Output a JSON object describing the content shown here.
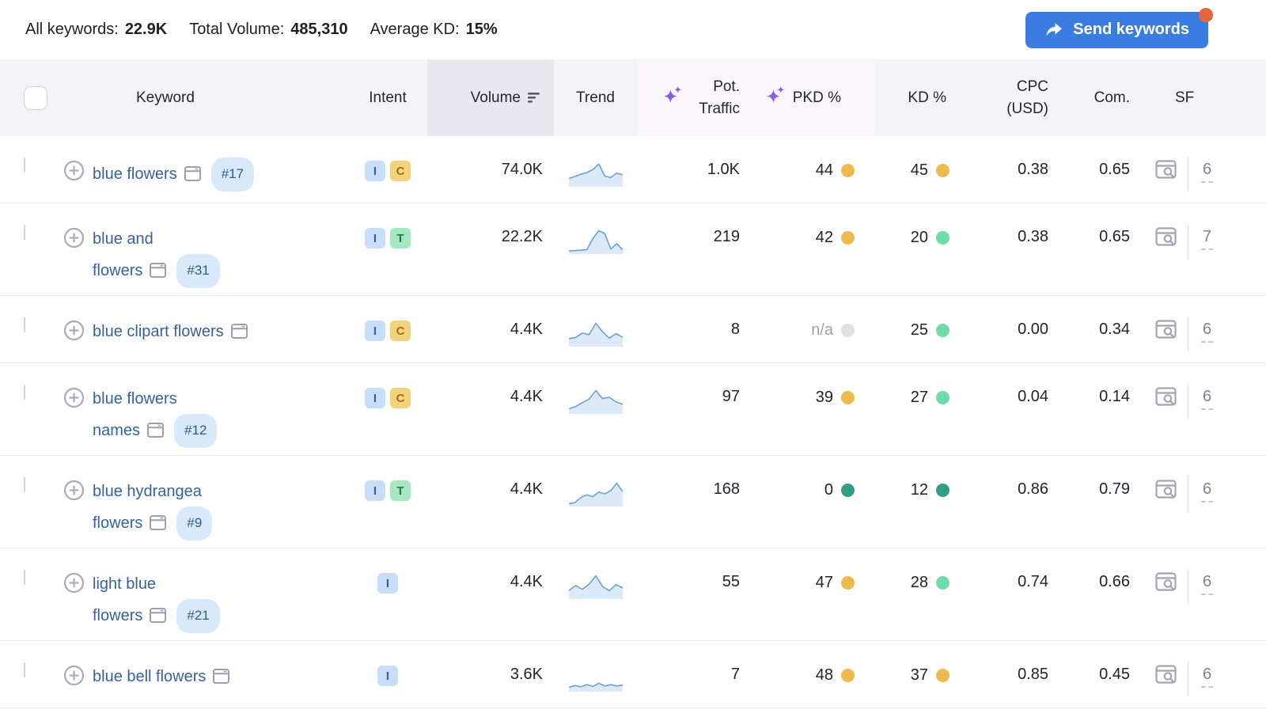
{
  "colors": {
    "accent_blue": "#3a7de2",
    "notification_orange": "#e8643c",
    "link_blue": "#35629e",
    "badge_bg": "#d8e9fb",
    "badge_text": "#2e5c86",
    "sparkline_line": "#6aa1d8",
    "sparkline_fill": "#dbe9f8",
    "sparkle_purple": "#8a5ce0",
    "dots": {
      "yellow": "#ecba4d",
      "green": "#6edca6",
      "teal": "#2f9e84",
      "gray": "#dfe1e8"
    },
    "intent": {
      "I": {
        "bg": "#c7ddf8",
        "fg": "#2c63a8"
      },
      "C": {
        "bg": "#f2d37c",
        "fg": "#99701d"
      },
      "T": {
        "bg": "#a5e7bf",
        "fg": "#1f7a4d"
      }
    }
  },
  "topbar": {
    "all_keywords_label": "All keywords:",
    "all_keywords_value": "22.9K",
    "total_volume_label": "Total Volume:",
    "total_volume_value": "485,310",
    "average_kd_label": "Average KD:",
    "average_kd_value": "15%",
    "send_button_label": "Send keywords"
  },
  "header": {
    "keyword": "Keyword",
    "intent": "Intent",
    "volume": "Volume",
    "trend": "Trend",
    "pot_traffic": "Pot. Traffic",
    "pkd": "PKD %",
    "kd": "KD %",
    "cpc": "CPC (USD)",
    "com": "Com.",
    "sf": "SF"
  },
  "rows": [
    {
      "keyword": "blue flowers",
      "keyword_lines": [
        "blue flowers"
      ],
      "position": "#17",
      "intents": [
        "I",
        "C"
      ],
      "volume": "74.0K",
      "trend": [
        0.3,
        0.38,
        0.48,
        0.55,
        0.68,
        0.92,
        0.4,
        0.33,
        0.52,
        0.46
      ],
      "pot_traffic": "1.0K",
      "pkd": "44",
      "pkd_dot": "yellow",
      "kd": "45",
      "kd_dot": "yellow",
      "cpc": "0.38",
      "com": "0.65",
      "sf": "6"
    },
    {
      "keyword": "blue and flowers",
      "keyword_lines": [
        "blue and",
        "flowers"
      ],
      "position": "#31",
      "intents": [
        "I",
        "T"
      ],
      "volume": "22.2K",
      "trend": [
        0.07,
        0.08,
        0.1,
        0.12,
        0.6,
        0.95,
        0.82,
        0.15,
        0.38,
        0.12
      ],
      "pot_traffic": "219",
      "pkd": "42",
      "pkd_dot": "yellow",
      "kd": "20",
      "kd_dot": "green",
      "cpc": "0.38",
      "com": "0.65",
      "sf": "7"
    },
    {
      "keyword": "blue clipart flowers",
      "keyword_lines": [
        "blue clipart flowers"
      ],
      "position": null,
      "intents": [
        "I",
        "C"
      ],
      "volume": "4.4K",
      "trend": [
        0.28,
        0.33,
        0.52,
        0.45,
        0.95,
        0.58,
        0.3,
        0.5,
        0.34
      ],
      "pot_traffic": "8",
      "pkd": "n/a",
      "pkd_dot": "gray",
      "kd": "25",
      "kd_dot": "green",
      "cpc": "0.00",
      "com": "0.34",
      "sf": "6"
    },
    {
      "keyword": "blue flowers names",
      "keyword_lines": [
        "blue flowers",
        "names"
      ],
      "position": "#12",
      "intents": [
        "I",
        "C"
      ],
      "volume": "4.4K",
      "trend": [
        0.15,
        0.25,
        0.42,
        0.58,
        0.95,
        0.6,
        0.66,
        0.45,
        0.35
      ],
      "pot_traffic": "97",
      "pkd": "39",
      "pkd_dot": "yellow",
      "kd": "27",
      "kd_dot": "green",
      "cpc": "0.04",
      "com": "0.14",
      "sf": "6"
    },
    {
      "keyword": "blue hydrangea flowers",
      "keyword_lines": [
        "blue hydrangea",
        "flowers"
      ],
      "position": "#9",
      "intents": [
        "I",
        "T"
      ],
      "volume": "4.4K",
      "trend": [
        0.05,
        0.1,
        0.32,
        0.44,
        0.36,
        0.56,
        0.48,
        0.62,
        0.95,
        0.58
      ],
      "pot_traffic": "168",
      "pkd": "0",
      "pkd_dot": "teal",
      "kd": "12",
      "kd_dot": "teal",
      "cpc": "0.86",
      "com": "0.79",
      "sf": "6"
    },
    {
      "keyword": "light blue flowers",
      "keyword_lines": [
        "light blue",
        "flowers"
      ],
      "position": "#21",
      "intents": [
        "I"
      ],
      "volume": "4.4K",
      "trend": [
        0.3,
        0.52,
        0.36,
        0.58,
        0.95,
        0.48,
        0.3,
        0.56,
        0.42
      ],
      "pot_traffic": "55",
      "pkd": "47",
      "pkd_dot": "yellow",
      "kd": "28",
      "kd_dot": "green",
      "cpc": "0.74",
      "com": "0.66",
      "sf": "6"
    },
    {
      "keyword": "blue bell flowers",
      "keyword_lines": [
        "blue bell flowers"
      ],
      "position": null,
      "intents": [
        "I"
      ],
      "volume": "3.6K",
      "trend": [
        0.12,
        0.2,
        0.14,
        0.24,
        0.16,
        0.3,
        0.18,
        0.24,
        0.18,
        0.22
      ],
      "pot_traffic": "7",
      "pkd": "48",
      "pkd_dot": "yellow",
      "kd": "37",
      "kd_dot": "yellow",
      "cpc": "0.85",
      "com": "0.45",
      "sf": "6"
    }
  ]
}
